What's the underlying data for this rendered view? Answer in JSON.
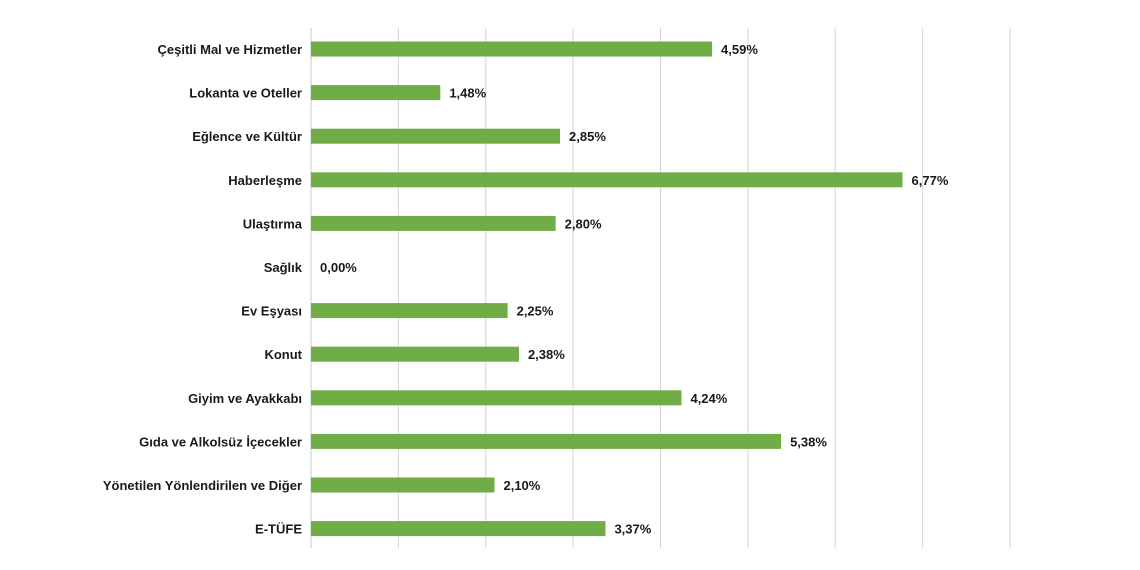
{
  "chart_data": {
    "type": "bar",
    "orientation": "horizontal",
    "categories": [
      "Çeşitli Mal ve Hizmetler",
      "Lokanta ve Oteller",
      "Eğlence ve Kültür",
      "Haberleşme",
      "Ulaştırma",
      "Sağlık",
      "Ev Eşyası",
      "Konut",
      "Giyim ve Ayakkabı",
      "Gıda ve Alkolsüz İçecekler",
      "Yönetilen Yönlendirilen ve Diğer",
      "E-TÜFE"
    ],
    "values": [
      4.59,
      1.48,
      2.85,
      6.77,
      2.8,
      0.0,
      2.25,
      2.38,
      4.24,
      5.38,
      2.1,
      3.37
    ],
    "value_labels": [
      "4,59%",
      "1,48%",
      "2,85%",
      "6,77%",
      "2,80%",
      "0,00%",
      "2,25%",
      "2,38%",
      "4,24%",
      "5,38%",
      "2,10%",
      "3,37%"
    ],
    "xlim": [
      0,
      8
    ],
    "grid": true,
    "bar_color": "#70ad47",
    "title": "",
    "xlabel": "",
    "ylabel": ""
  }
}
